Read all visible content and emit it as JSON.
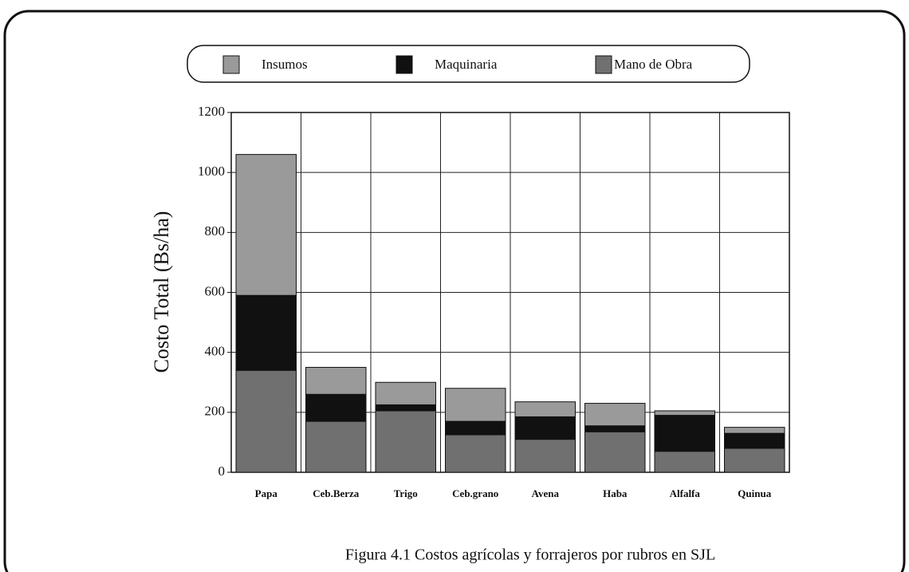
{
  "chart_data": {
    "type": "stacked_bar",
    "y_label": "Costo Total (Bs/ha)",
    "caption": "Figura 4.1  Costos agrícolas y forrajeros por rubros en SJL",
    "categories": [
      "Papa",
      "Ceb.Berza",
      "Trigo",
      "Ceb.grano",
      "Avena",
      "Haba",
      "Alfalfa",
      "Quinua"
    ],
    "series": [
      {
        "name": "Mano de Obra",
        "color": "#707070",
        "values": [
          340,
          170,
          205,
          125,
          110,
          135,
          70,
          80
        ]
      },
      {
        "name": "Maquinaria",
        "color": "#111111",
        "values": [
          250,
          90,
          20,
          45,
          75,
          20,
          120,
          50
        ]
      },
      {
        "name": "Insumos",
        "color": "#9a9a9a",
        "values": [
          470,
          90,
          75,
          110,
          50,
          75,
          15,
          20
        ]
      }
    ],
    "legend_order": [
      2,
      1,
      0
    ],
    "ylim": [
      0,
      1200
    ],
    "yticks": [
      0,
      200,
      400,
      600,
      800,
      1000,
      1200
    ],
    "grid": true
  }
}
